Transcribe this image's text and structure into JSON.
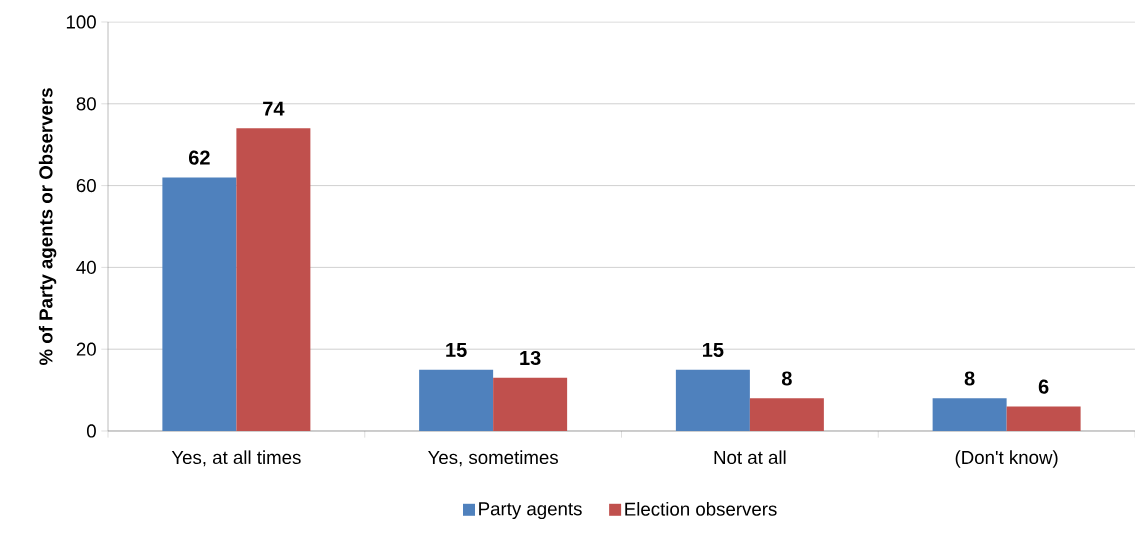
{
  "chart_data": {
    "type": "bar",
    "ylabel": "% of Party agents or Observers",
    "categories": [
      "Yes, at all times",
      "Yes, sometimes",
      "Not at all",
      "(Don't know)"
    ],
    "series": [
      {
        "name": "Party agents",
        "color": "#4f81bd",
        "values": [
          62,
          15,
          15,
          8
        ]
      },
      {
        "name": "Election observers",
        "color": "#c0504d",
        "values": [
          74,
          13,
          8,
          6
        ]
      }
    ],
    "ylim": [
      0,
      100
    ],
    "yticks": [
      0,
      20,
      40,
      60,
      80,
      100
    ],
    "grid": "y",
    "legend": "bottom",
    "data_labels": true
  }
}
